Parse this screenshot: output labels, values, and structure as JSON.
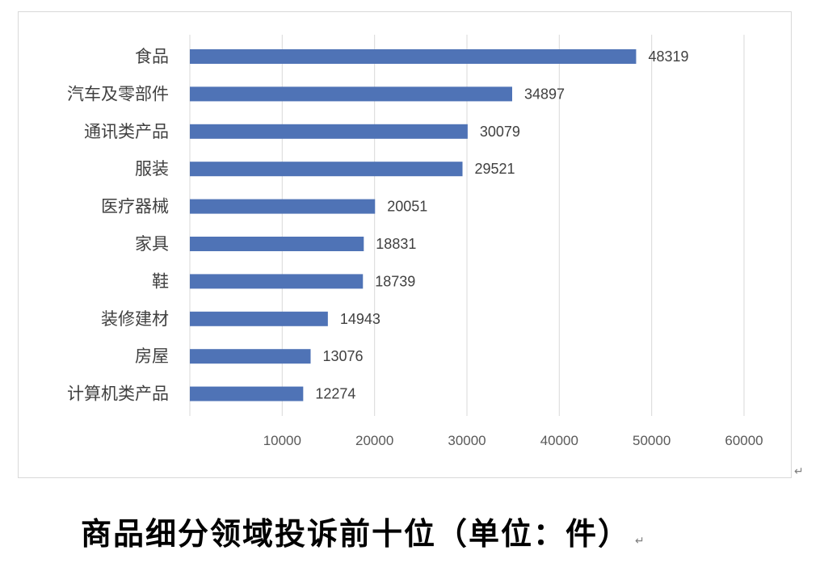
{
  "chart_data": {
    "type": "bar",
    "orientation": "horizontal",
    "categories": [
      "食品",
      "汽车及零部件",
      "通讯类产品",
      "服装",
      "医疗器械",
      "家具",
      "鞋",
      "装修建材",
      "房屋",
      "计算机类产品"
    ],
    "values": [
      48319,
      34897,
      30079,
      29521,
      20051,
      18831,
      18739,
      14943,
      13076,
      12274
    ],
    "value_labels": [
      "48319",
      "34897",
      "30079",
      "29521",
      "20051",
      "18831",
      "18739",
      "14943",
      "13076",
      "12274"
    ],
    "xticks": [
      "10000",
      "20000",
      "30000",
      "40000",
      "50000",
      "60000"
    ],
    "xlim": [
      0,
      60000
    ],
    "grid": "vertical",
    "legend": "none",
    "bar_color": "#4f73b6",
    "grid_color": "#d9d9d9"
  },
  "caption": {
    "text": "商品细分领域投诉前十位（单位：件）"
  },
  "marks": {
    "paragraph_return": "↵"
  }
}
